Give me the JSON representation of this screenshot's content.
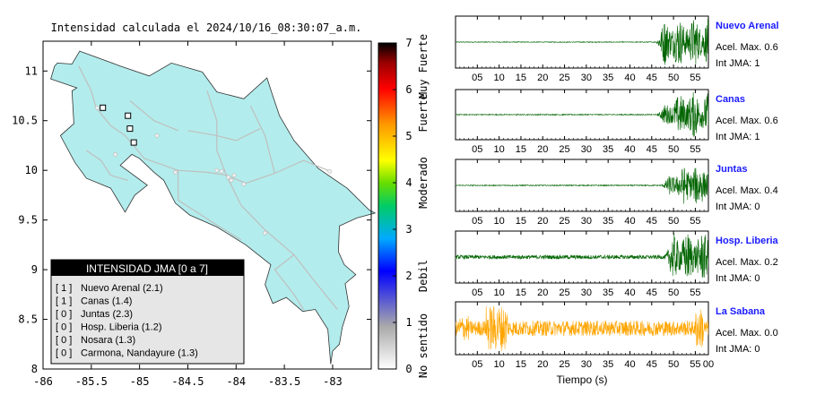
{
  "map": {
    "title": "Intensidad calculada el 2024/10/16_08:30:07_a.m.",
    "x_ticks": [
      "-86",
      "-85.5",
      "-85",
      "-84.5",
      "-84",
      "-83.5",
      "-83"
    ],
    "y_ticks": [
      "8",
      "8.5",
      "9",
      "9.5",
      "10",
      "10.5",
      "11"
    ],
    "xlim": [
      -86,
      -82.6
    ],
    "ylim": [
      8,
      11.3
    ],
    "land_color": "#b3ecec",
    "stations_lonlat": [
      [
        -85.38,
        10.63
      ],
      [
        -85.12,
        10.55
      ],
      [
        -85.1,
        10.42
      ],
      [
        -85.06,
        10.28
      ]
    ],
    "legend": {
      "header": "INTENSIDAD JMA [0 a 7]",
      "entries": [
        {
          "level": "[ 1 ]",
          "label": "Nuevo Arenal (2.1)"
        },
        {
          "level": "[ 1 ]",
          "label": "Canas (1.4)"
        },
        {
          "level": "[ 0 ]",
          "label": "Juntas (2.3)"
        },
        {
          "level": "[ 0 ]",
          "label": "Hosp. Liberia (1.2)"
        },
        {
          "level": "[ 0 ]",
          "label": "Nosara (1.3)"
        },
        {
          "level": "[ 0 ]",
          "label": "Carmona, Nandayure (1.3)"
        }
      ]
    }
  },
  "colorbar": {
    "ticks": [
      "0",
      "1",
      "2",
      "3",
      "4",
      "5",
      "6",
      "7"
    ],
    "labels": [
      {
        "text": "No sentido",
        "from": 0,
        "to": 1
      },
      {
        "text": "Debil",
        "from": 1,
        "to": 3
      },
      {
        "text": "Moderado",
        "from": 3,
        "to": 5
      },
      {
        "text": "Fuerte",
        "from": 5,
        "to": 6
      },
      {
        "text": "Muy Fuerte",
        "from": 6,
        "to": 7
      }
    ]
  },
  "chart_data": {
    "type": "line",
    "xlabel": "Tiempo (s)",
    "x_ticks": [
      "05",
      "10",
      "15",
      "20",
      "25",
      "30",
      "35",
      "40",
      "45",
      "50",
      "55"
    ],
    "x_ticks_last": [
      "05",
      "10",
      "15",
      "20",
      "25",
      "30",
      "35",
      "40",
      "45",
      "50",
      "55",
      "00"
    ],
    "series": [
      {
        "name": "Nuevo Arenal",
        "accel_label": "Acel. Max. 0.6",
        "int_label": "Int JMA: 1",
        "color": "#006400",
        "onset": 46,
        "noise": 0.015,
        "amp": 0.95
      },
      {
        "name": "Canas",
        "accel_label": "Acel. Max. 0.6",
        "int_label": "Int JMA: 1",
        "color": "#006400",
        "onset": 46,
        "noise": 0.02,
        "amp": 0.95
      },
      {
        "name": "Juntas",
        "accel_label": "Acel. Max. 0.4",
        "int_label": "Int JMA: 0",
        "color": "#006400",
        "onset": 47,
        "noise": 0.02,
        "amp": 0.85
      },
      {
        "name": "Hosp. Liberia",
        "accel_label": "Acel. Max. 0.2",
        "int_label": "Int JMA: 0",
        "color": "#006400",
        "onset": 48,
        "noise": 0.08,
        "amp": 0.9
      },
      {
        "name": "La Sabana",
        "accel_label": "Acel. Max. 0.0",
        "int_label": "Int JMA: 0",
        "color": "#ffa500",
        "onset": 0,
        "noise": 0.3,
        "amp": 0.4
      }
    ]
  }
}
